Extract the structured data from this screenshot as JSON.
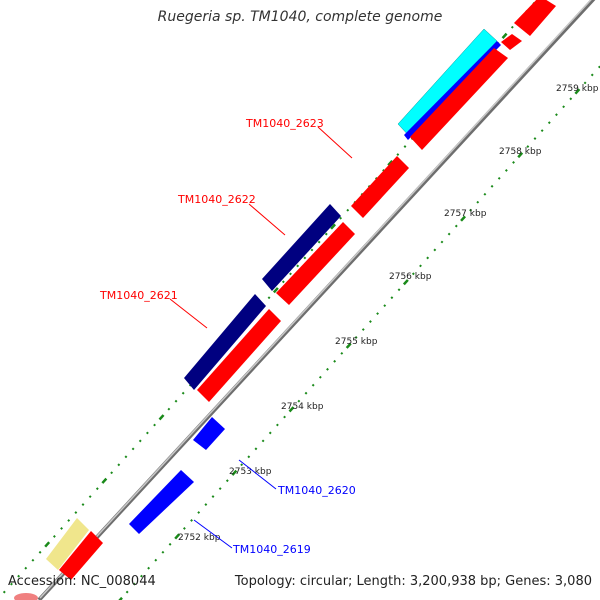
{
  "title": "Ruegeria sp. TM1040, complete genome",
  "footer": {
    "accession": "Accession: NC_008044",
    "summary": "Topology: circular; Length: 3,200,938 bp; Genes: 3,080"
  },
  "colors": {
    "forward_cds": "#ff0000",
    "reverse_cds": "#0000ff",
    "reverse_cds_dark": "#000080",
    "cyan_feature": "#00ffff",
    "yellow_feature": "#f0e68c",
    "backbone": "#999999",
    "tick": "#008000"
  },
  "ticks": [
    {
      "label": "2752 kbp"
    },
    {
      "label": "2753 kbp"
    },
    {
      "label": "2754 kbp"
    },
    {
      "label": "2755 kbp"
    },
    {
      "label": "2756 kbp"
    },
    {
      "label": "2757 kbp"
    },
    {
      "label": "2758 kbp"
    },
    {
      "label": "2759 kbp"
    }
  ],
  "gene_labels": [
    {
      "text": "TM1040_2623",
      "color": "#ff0000"
    },
    {
      "text": "TM1040_2622",
      "color": "#ff0000"
    },
    {
      "text": "TM1040_2621",
      "color": "#ff0000"
    },
    {
      "text": "TM1040_2620",
      "color": "#0000ff"
    },
    {
      "text": "TM1040_2619",
      "color": "#0000ff"
    }
  ]
}
